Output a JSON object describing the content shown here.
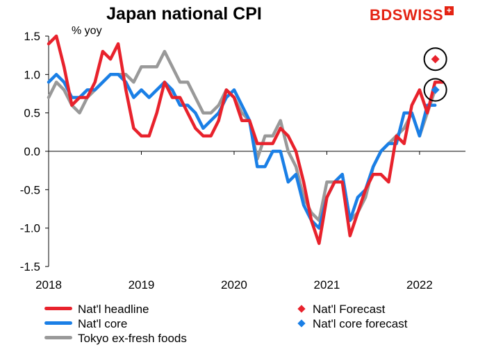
{
  "brand": {
    "part1": "BD",
    "part2": "SWISS",
    "plus": "+"
  },
  "chart_data": {
    "type": "line",
    "title": "Japan national CPI",
    "ylabel": "% yoy",
    "ylim": [
      -1.5,
      1.5
    ],
    "yticks": [
      1.5,
      1.0,
      0.5,
      0.0,
      -0.5,
      -1.0,
      -1.5
    ],
    "ytick_labels": [
      "1.5",
      "1.0",
      "0.5",
      "0.0",
      "-0.5",
      "-1.0",
      "-1.5"
    ],
    "xlim": [
      2018.0,
      2022.42
    ],
    "xticks": [
      2018,
      2019,
      2020,
      2021,
      2022
    ],
    "xtick_labels": [
      "2018",
      "2019",
      "2020",
      "2021",
      "2022"
    ],
    "series": [
      {
        "name": "Nat'l headline",
        "color": "#e8222c",
        "kind": "line",
        "start": 2018.0,
        "values": [
          1.4,
          1.5,
          1.1,
          0.6,
          0.7,
          0.7,
          0.9,
          1.3,
          1.2,
          1.4,
          0.8,
          0.3,
          0.2,
          0.2,
          0.5,
          0.9,
          0.7,
          0.7,
          0.5,
          0.3,
          0.2,
          0.2,
          0.4,
          0.8,
          0.7,
          0.4,
          0.4,
          0.1,
          0.1,
          0.1,
          0.3,
          0.2,
          0.0,
          -0.4,
          -0.9,
          -1.2,
          -0.6,
          -0.4,
          -0.4,
          -1.1,
          -0.8,
          -0.5,
          -0.3,
          -0.3,
          -0.4,
          0.2,
          0.1,
          0.6,
          0.8,
          0.5,
          0.9,
          0.9
        ]
      },
      {
        "name": "Nat'l core",
        "color": "#1a7fe6",
        "kind": "line",
        "start": 2018.0,
        "values": [
          0.9,
          1.0,
          0.9,
          0.7,
          0.7,
          0.8,
          0.8,
          0.9,
          1.0,
          1.0,
          0.9,
          0.7,
          0.8,
          0.7,
          0.8,
          0.9,
          0.8,
          0.6,
          0.6,
          0.5,
          0.3,
          0.4,
          0.5,
          0.7,
          0.8,
          0.6,
          0.4,
          -0.2,
          -0.2,
          0.0,
          0.0,
          -0.4,
          -0.3,
          -0.7,
          -0.9,
          -1.0,
          -0.6,
          -0.4,
          -0.3,
          -0.9,
          -0.6,
          -0.5,
          -0.2,
          0.0,
          0.1,
          0.1,
          0.5,
          0.5,
          0.2,
          0.6,
          0.6
        ]
      },
      {
        "name": "Tokyo ex-fresh foods",
        "color": "#999999",
        "kind": "line",
        "start": 2018.0,
        "values": [
          0.7,
          0.9,
          0.8,
          0.6,
          0.5,
          0.7,
          0.8,
          0.9,
          1.0,
          1.0,
          1.0,
          0.9,
          1.1,
          1.1,
          1.1,
          1.3,
          1.1,
          0.9,
          0.9,
          0.7,
          0.5,
          0.5,
          0.6,
          0.8,
          0.7,
          0.5,
          0.4,
          -0.1,
          0.2,
          0.2,
          0.4,
          0.0,
          -0.2,
          -0.6,
          -0.8,
          -0.9,
          -0.4,
          -0.4,
          -0.3,
          -0.9,
          -0.8,
          -0.6,
          -0.2,
          0.0,
          0.1,
          0.2,
          0.3,
          0.5,
          0.2,
          0.5,
          0.8
        ]
      },
      {
        "name": "Nat'l Forecast",
        "color": "#e8222c",
        "kind": "marker",
        "x": 2022.17,
        "value": 1.2
      },
      {
        "name": "Nat'l core forecast",
        "color": "#1a7fe6",
        "kind": "marker",
        "x": 2022.17,
        "value": 0.8
      }
    ],
    "annotations": [
      "circle around Nat'l Forecast point",
      "circle around Nat'l core forecast point"
    ]
  }
}
